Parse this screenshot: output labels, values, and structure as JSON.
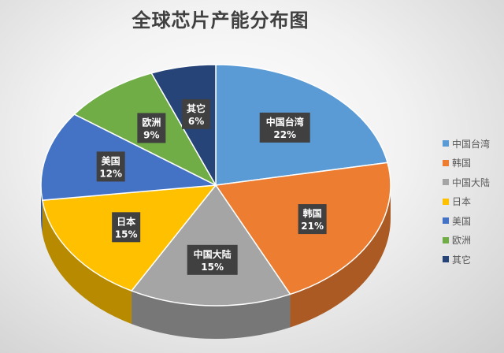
{
  "chart_data": {
    "type": "pie",
    "style": "3d",
    "title": "全球芯片产能分布图",
    "legend_position": "right",
    "slices": [
      {
        "label": "中国台湾",
        "value": 22,
        "display": "22%",
        "color": "#5b9bd5"
      },
      {
        "label": "韩国",
        "value": 21,
        "display": "21%",
        "color": "#ed7d31"
      },
      {
        "label": "中国大陆",
        "value": 15,
        "display": "15%",
        "color": "#a5a5a5"
      },
      {
        "label": "日本",
        "value": 15,
        "display": "15%",
        "color": "#ffc000"
      },
      {
        "label": "美国",
        "value": 12,
        "display": "12%",
        "color": "#4472c4"
      },
      {
        "label": "欧洲",
        "value": 9,
        "display": "9%",
        "color": "#70ad47"
      },
      {
        "label": "其它",
        "value": 6,
        "display": "6%",
        "color": "#264478"
      }
    ]
  }
}
